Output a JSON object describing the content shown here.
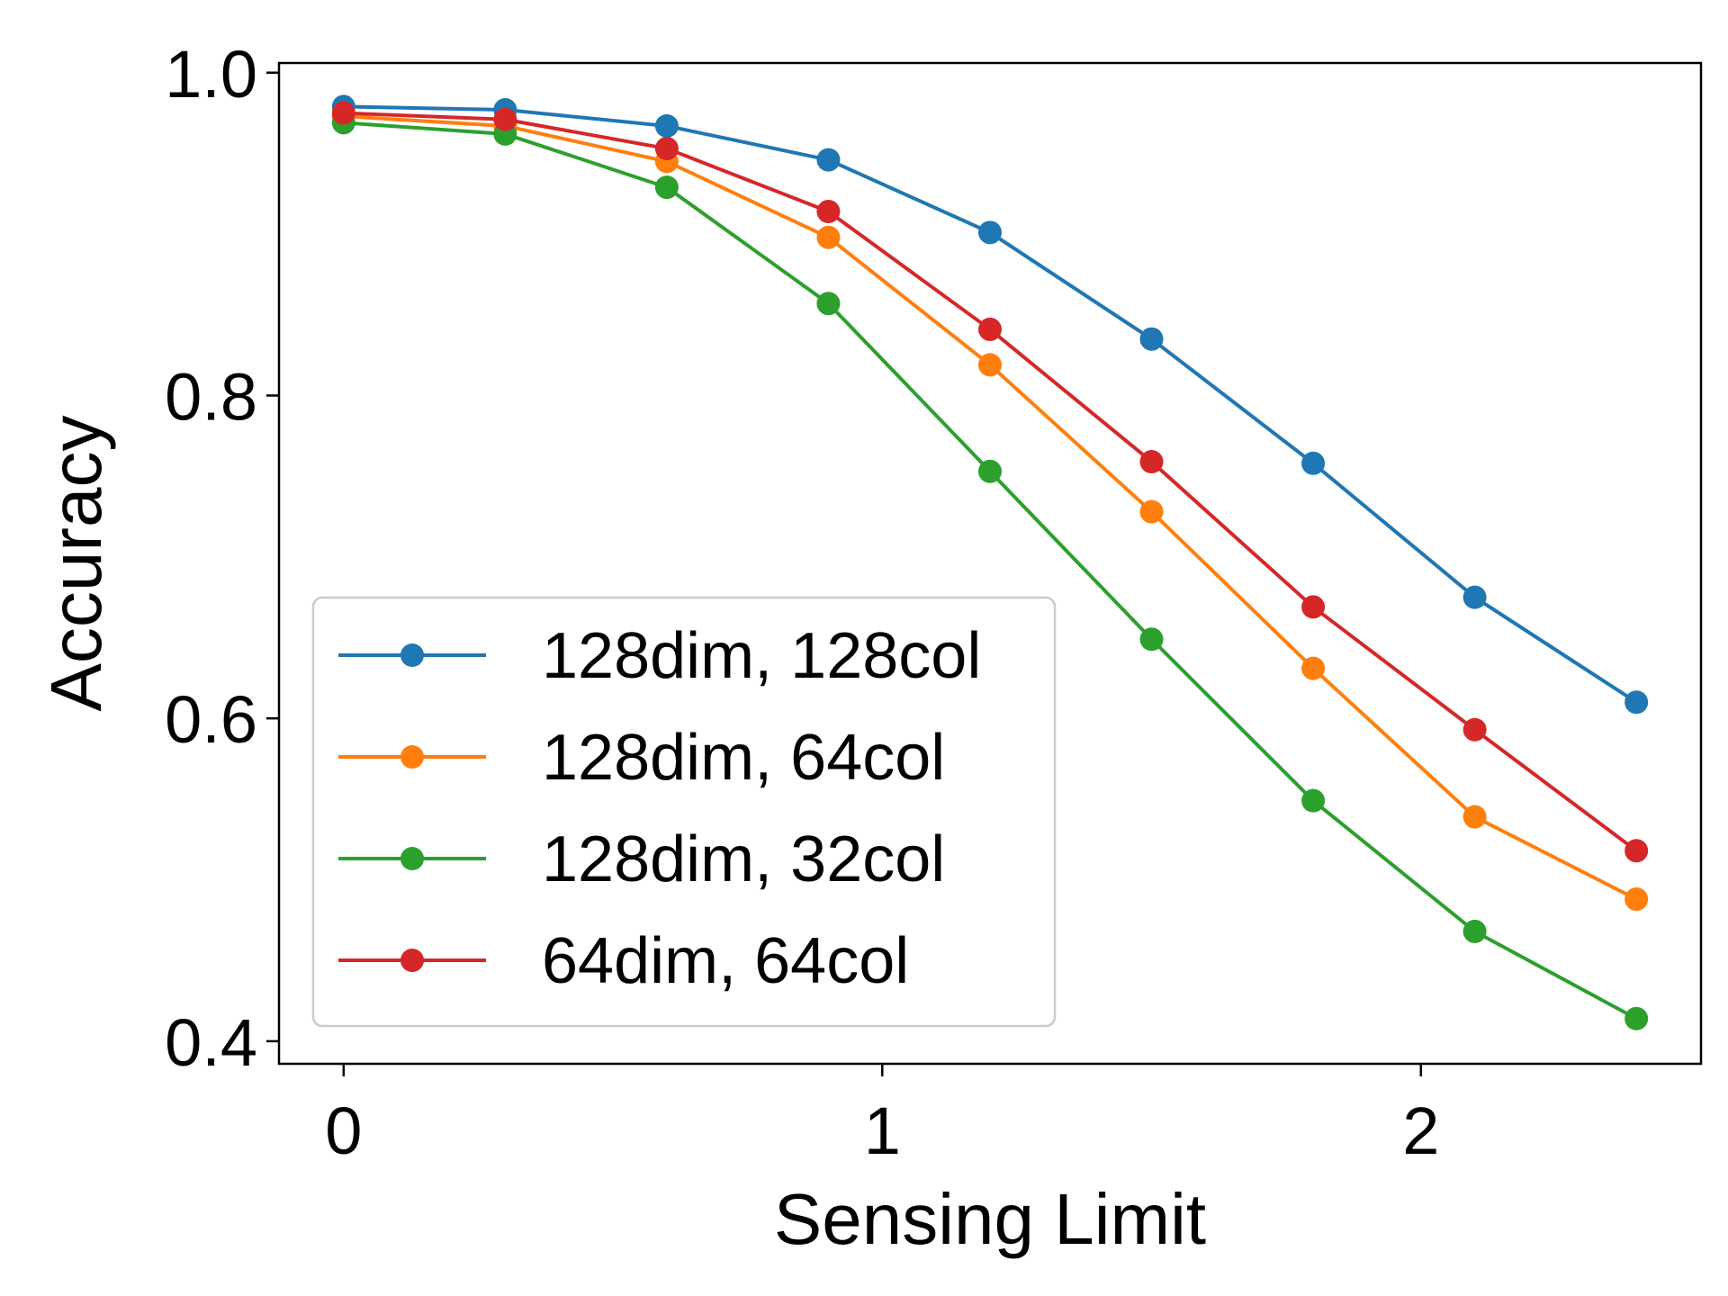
{
  "chart_data": {
    "type": "line",
    "title": "",
    "xlabel": "Sensing Limit",
    "ylabel": "Accuracy",
    "xlim": [
      -0.12,
      2.52
    ],
    "ylim": [
      0.386,
      1.006
    ],
    "xticks": [
      0,
      1,
      2
    ],
    "xtick_labels": [
      "0",
      "1",
      "2"
    ],
    "yticks": [
      0.4,
      0.6,
      0.8,
      1.0
    ],
    "ytick_labels": [
      "0.4",
      "0.6",
      "0.8",
      "1.0"
    ],
    "grid": false,
    "legend_position": "lower-left",
    "x": [
      0,
      0.3,
      0.6,
      0.9,
      1.2,
      1.5,
      1.8,
      2.1,
      2.4
    ],
    "series": [
      {
        "name": "128dim, 128col",
        "color": "#1f77b4",
        "marker": "circle",
        "values": [
          0.979,
          0.977,
          0.967,
          0.946,
          0.901,
          0.835,
          0.758,
          0.675,
          0.61
        ]
      },
      {
        "name": "128dim, 64col",
        "color": "#ff7f0e",
        "marker": "circle",
        "values": [
          0.973,
          0.967,
          0.945,
          0.898,
          0.819,
          0.728,
          0.631,
          0.539,
          0.488
        ]
      },
      {
        "name": "128dim, 32col",
        "color": "#2ca02c",
        "marker": "circle",
        "values": [
          0.969,
          0.962,
          0.929,
          0.857,
          0.753,
          0.649,
          0.549,
          0.468,
          0.414
        ]
      },
      {
        "name": "64dim, 64col",
        "color": "#d62728",
        "marker": "circle",
        "values": [
          0.975,
          0.971,
          0.953,
          0.914,
          0.841,
          0.759,
          0.669,
          0.593,
          0.518
        ]
      }
    ]
  }
}
